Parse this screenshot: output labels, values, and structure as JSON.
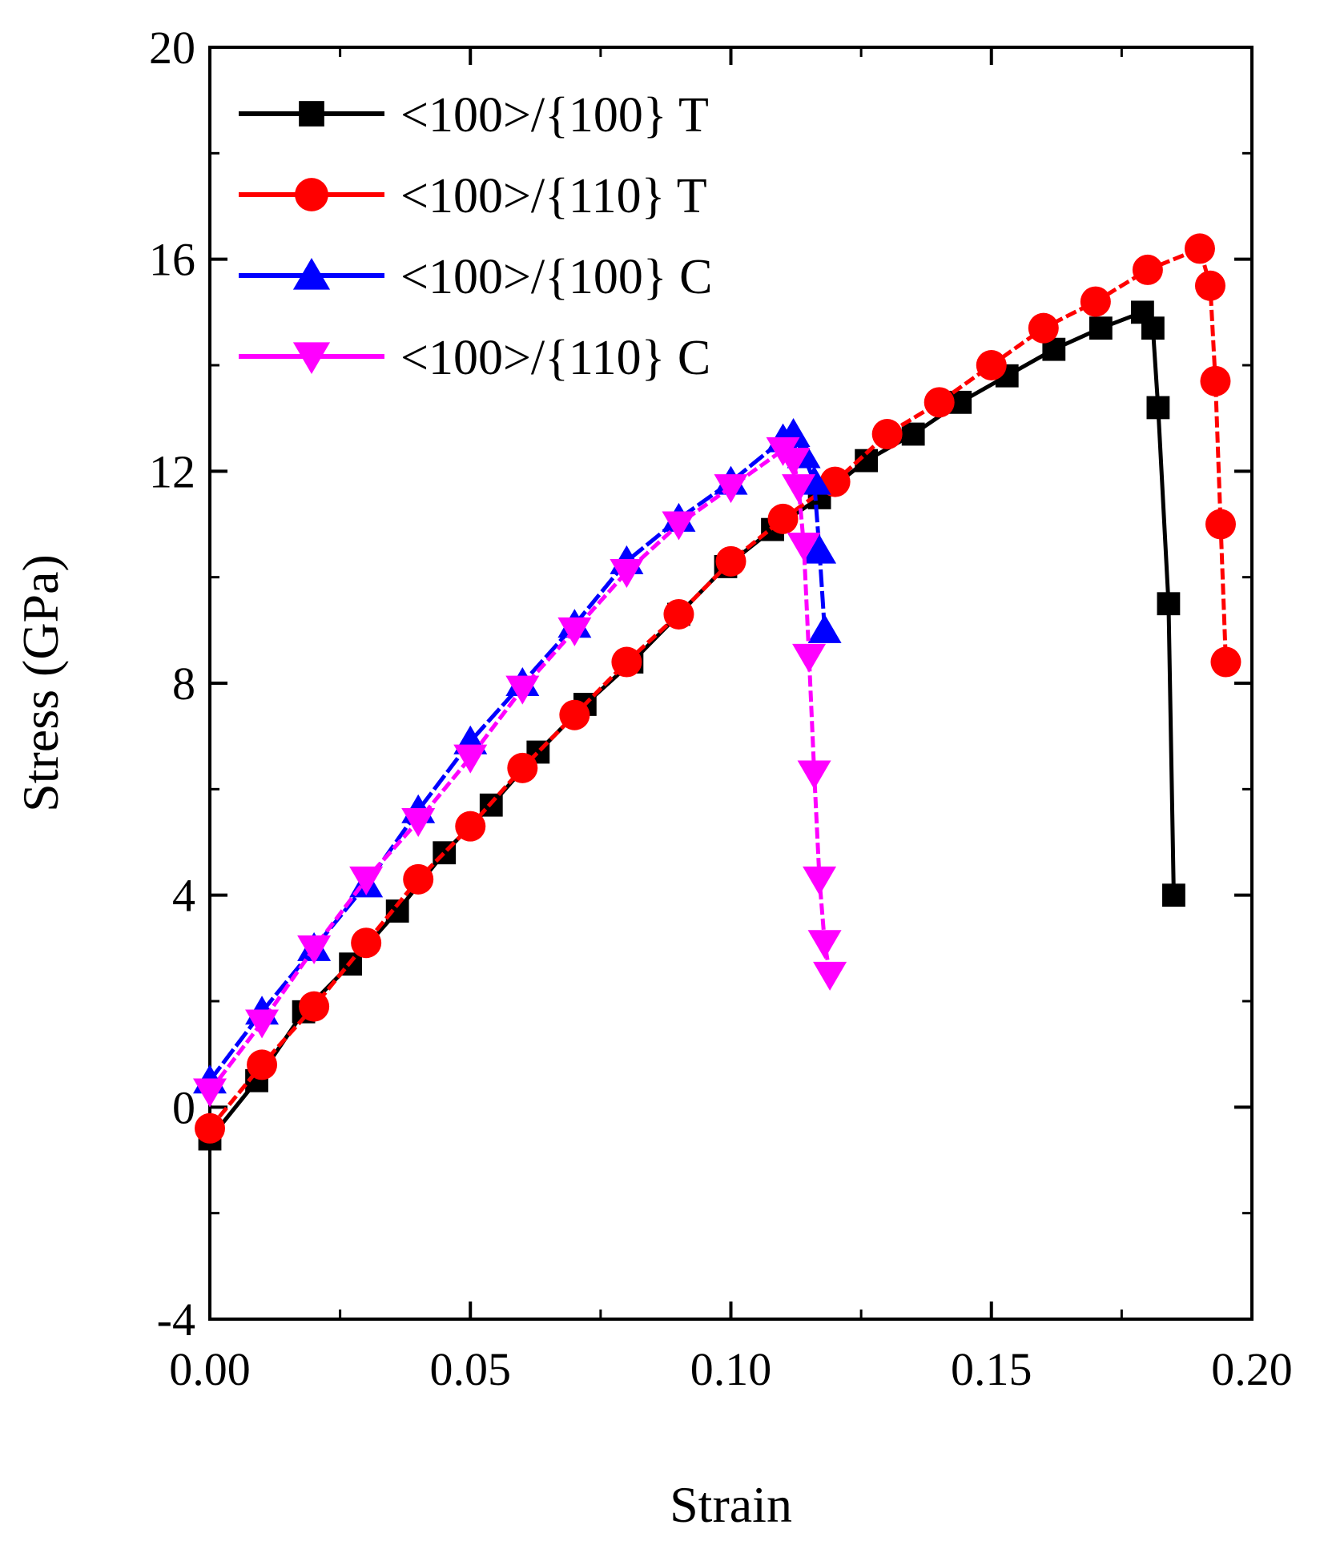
{
  "chart_data": {
    "type": "line",
    "title": "",
    "xlabel": "Strain",
    "ylabel": "Stress (GPa)",
    "xlim": [
      0.0,
      0.2
    ],
    "ylim": [
      -4,
      20
    ],
    "x_ticks": [
      0.0,
      0.05,
      0.1,
      0.15,
      0.2
    ],
    "x_tick_labels": [
      "0.00",
      "0.05",
      "0.10",
      "0.15",
      "0.20"
    ],
    "y_ticks": [
      -4,
      0,
      4,
      8,
      12,
      16,
      20
    ],
    "y_tick_labels": [
      "-4",
      "0",
      "4",
      "8",
      "12",
      "16",
      "20"
    ],
    "grid": false,
    "legend_position": "top-left",
    "series": [
      {
        "name": "<100>/{100} T",
        "color": "#000000",
        "marker": "square",
        "x": [
          0.0,
          0.009,
          0.018,
          0.027,
          0.036,
          0.045,
          0.054,
          0.063,
          0.072,
          0.081,
          0.09,
          0.099,
          0.108,
          0.117,
          0.126,
          0.135,
          0.144,
          0.153,
          0.162,
          0.171,
          0.179,
          0.181,
          0.182,
          0.184,
          0.185
        ],
        "y": [
          -0.6,
          0.5,
          1.8,
          2.7,
          3.7,
          4.8,
          5.7,
          6.7,
          7.6,
          8.4,
          9.3,
          10.2,
          10.9,
          11.5,
          12.2,
          12.7,
          13.3,
          13.8,
          14.3,
          14.7,
          15.0,
          14.7,
          13.2,
          9.5,
          4.0
        ]
      },
      {
        "name": "<100>/{110} T",
        "color": "#ff0000",
        "marker": "circle",
        "x": [
          0.0,
          0.01,
          0.02,
          0.03,
          0.04,
          0.05,
          0.06,
          0.07,
          0.08,
          0.09,
          0.1,
          0.11,
          0.12,
          0.13,
          0.14,
          0.15,
          0.16,
          0.17,
          0.18,
          0.19,
          0.192,
          0.193,
          0.194,
          0.195
        ],
        "y": [
          -0.4,
          0.8,
          1.9,
          3.1,
          4.3,
          5.3,
          6.4,
          7.4,
          8.4,
          9.3,
          10.3,
          11.1,
          11.8,
          12.7,
          13.3,
          14.0,
          14.7,
          15.2,
          15.8,
          16.2,
          15.5,
          13.7,
          11.0,
          8.4
        ]
      },
      {
        "name": "<100>/{100} C",
        "color": "#0000ff",
        "marker": "triangle-up",
        "x": [
          0.0,
          0.01,
          0.02,
          0.03,
          0.04,
          0.05,
          0.06,
          0.07,
          0.08,
          0.09,
          0.1,
          0.11,
          0.112,
          0.114,
          0.116,
          0.117,
          0.118
        ],
        "y": [
          0.5,
          1.8,
          3.0,
          4.2,
          5.6,
          6.9,
          8.0,
          9.1,
          10.3,
          11.1,
          11.8,
          12.6,
          12.7,
          12.3,
          11.8,
          10.5,
          9.0
        ]
      },
      {
        "name": "<100>/{110} C",
        "color": "#ff00ff",
        "marker": "triangle-down",
        "x": [
          0.0,
          0.01,
          0.02,
          0.03,
          0.04,
          0.05,
          0.06,
          0.07,
          0.08,
          0.09,
          0.1,
          0.11,
          0.112,
          0.113,
          0.114,
          0.115,
          0.116,
          0.117,
          0.118,
          0.119
        ],
        "y": [
          0.3,
          1.6,
          3.0,
          4.3,
          5.4,
          6.6,
          7.9,
          9.0,
          10.1,
          11.0,
          11.7,
          12.4,
          12.2,
          11.7,
          10.6,
          8.5,
          6.3,
          4.3,
          3.1,
          2.5
        ]
      }
    ]
  }
}
